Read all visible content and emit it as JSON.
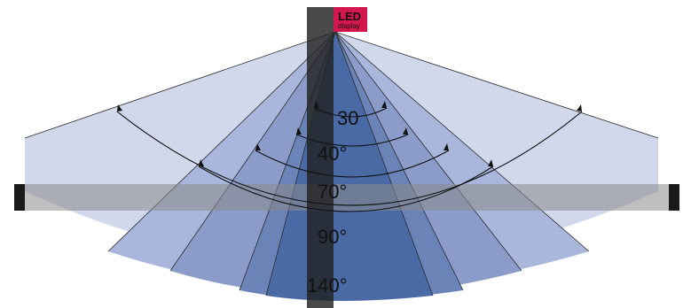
{
  "led": {
    "title": "LED",
    "subtitle": "display",
    "color": "#d4174f"
  },
  "angles": [
    {
      "label": "30",
      "degrees": 30,
      "fill": "#4a6aa6"
    },
    {
      "label": "40°",
      "degrees": 40,
      "fill": "#6b84b8"
    },
    {
      "label": "70°",
      "degrees": 70,
      "fill": "#8b9ccb"
    },
    {
      "label": "90°",
      "degrees": 90,
      "fill": "#aab7dc"
    },
    {
      "label": "140°",
      "degrees": 140,
      "fill": "#d2d8ec"
    }
  ],
  "colors": {
    "beam_core": "#4a6aa6",
    "post": "#222222",
    "crossbar": "#8a8a8a",
    "arc_stroke": "#111111"
  }
}
